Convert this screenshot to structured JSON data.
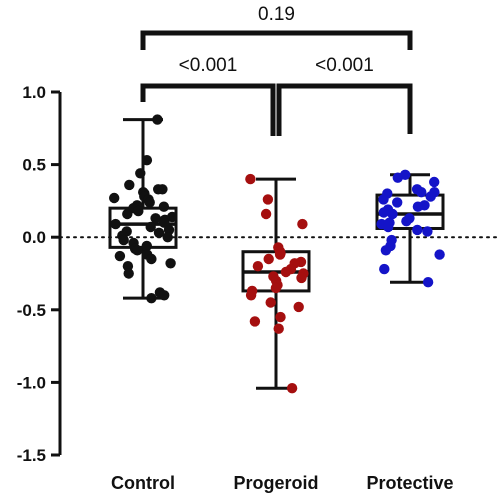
{
  "chart_data": {
    "type": "box-scatter",
    "categories": [
      "Control",
      "Progeroid",
      "Protective"
    ],
    "ylim": [
      -1.5,
      1.0
    ],
    "yticks": [
      "1.0",
      "0.5",
      "0.0",
      "-0.5",
      "-1.0",
      "-1.5"
    ],
    "ytick_values": [
      1.0,
      0.5,
      0.0,
      -0.5,
      -1.0,
      -1.5
    ],
    "reference_line": 0.0,
    "colors": {
      "Control": "#111111",
      "Progeroid": "#a50f0f",
      "Protective": "#1414c8"
    },
    "boxes": [
      {
        "name": "Control",
        "min": -0.42,
        "q1": -0.07,
        "median": 0.09,
        "q3": 0.2,
        "max": 0.81
      },
      {
        "name": "Progeroid",
        "min": -1.04,
        "q1": -0.37,
        "median": -0.24,
        "q3": -0.1,
        "max": 0.4
      },
      {
        "name": "Protective",
        "min": -0.31,
        "q1": 0.06,
        "median": 0.16,
        "q3": 0.29,
        "max": 0.43
      }
    ],
    "points": {
      "Control": [
        0.81,
        0.53,
        0.44,
        0.36,
        0.33,
        0.33,
        0.31,
        0.3,
        0.28,
        0.27,
        0.26,
        0.24,
        0.22,
        0.21,
        0.2,
        0.18,
        0.16,
        0.14,
        0.13,
        0.12,
        0.1,
        0.09,
        0.07,
        0.05,
        0.04,
        0.03,
        0.01,
        0.0,
        -0.02,
        -0.04,
        -0.06,
        -0.08,
        -0.09,
        -0.12,
        -0.13,
        -0.15,
        -0.18,
        -0.2,
        -0.25,
        -0.38,
        -0.4,
        -0.42
      ],
      "Progeroid": [
        0.4,
        0.26,
        0.16,
        0.09,
        -0.07,
        -0.1,
        -0.1,
        -0.11,
        -0.12,
        -0.15,
        -0.17,
        -0.18,
        -0.2,
        -0.22,
        -0.24,
        -0.25,
        -0.27,
        -0.28,
        -0.3,
        -0.33,
        -0.35,
        -0.37,
        -0.4,
        -0.45,
        -0.48,
        -0.55,
        -0.58,
        -0.63,
        -1.04
      ],
      "Protective": [
        0.43,
        0.41,
        0.38,
        0.33,
        0.31,
        0.31,
        0.3,
        0.28,
        0.26,
        0.24,
        0.22,
        0.21,
        0.19,
        0.17,
        0.16,
        0.13,
        0.11,
        0.1,
        0.09,
        0.07,
        0.05,
        0.04,
        -0.02,
        -0.06,
        -0.09,
        -0.12,
        -0.22,
        -0.31
      ]
    },
    "comparisons": [
      {
        "from": "Control",
        "to": "Protective",
        "label": "0.19"
      },
      {
        "from": "Control",
        "to": "Progeroid",
        "label": "<0.001"
      },
      {
        "from": "Progeroid",
        "to": "Protective",
        "label": "<0.001"
      }
    ]
  }
}
